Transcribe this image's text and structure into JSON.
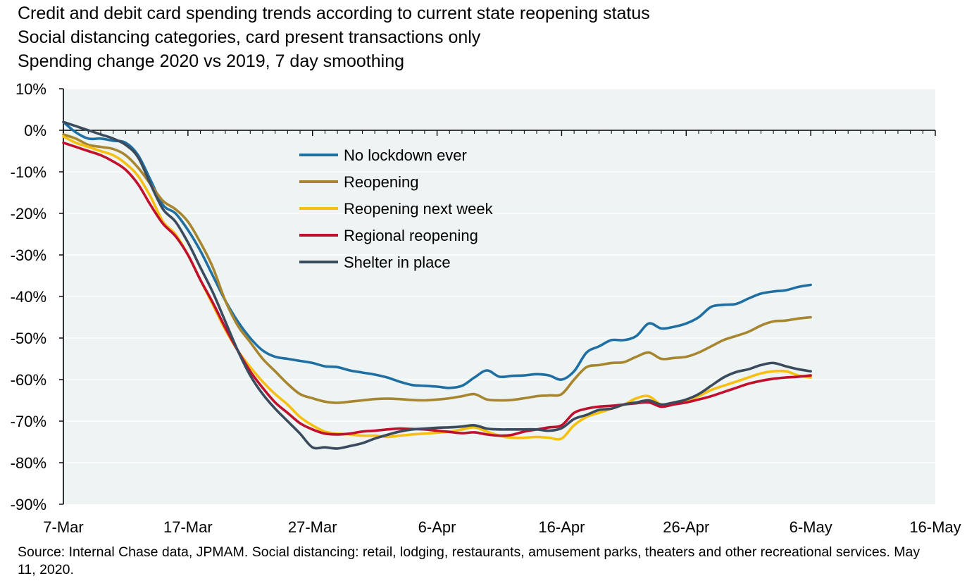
{
  "chart_data": {
    "type": "line",
    "title": "Credit and debit card spending trends according to current state reopening status",
    "subtitle": "Social distancing categories, card present transactions only",
    "subtitle2": "Spending change 2020 vs 2019, 7 day smoothing",
    "xlabel": "",
    "ylabel": "",
    "x_unit": "days since 7-Mar-2020",
    "xlim": [
      0,
      70
    ],
    "ylim": [
      -90,
      10
    ],
    "y_ticks": [
      10,
      0,
      -10,
      -20,
      -30,
      -40,
      -50,
      -60,
      -70,
      -80,
      -90
    ],
    "y_tick_labels": [
      "10%",
      "0%",
      "-10%",
      "-20%",
      "-30%",
      "-40%",
      "-50%",
      "-60%",
      "-70%",
      "-80%",
      "-90%"
    ],
    "x_ticks": [
      0,
      10,
      20,
      30,
      40,
      50,
      60,
      70
    ],
    "x_tick_labels": [
      "7-Mar",
      "17-Mar",
      "27-Mar",
      "6-Apr",
      "16-Apr",
      "26-Apr",
      "6-May",
      "16-May"
    ],
    "grid": "horizontal",
    "background": "#EDF4F3",
    "legend_position": "upper-center",
    "series": [
      {
        "name": "No lockdown ever",
        "color": "#1F6FA3",
        "points": [
          [
            0,
            2
          ],
          [
            1,
            -0.5
          ],
          [
            2,
            -2
          ],
          [
            3,
            -2
          ],
          [
            4,
            -2.5
          ],
          [
            5,
            -3
          ],
          [
            6,
            -6
          ],
          [
            7,
            -12
          ],
          [
            8,
            -18
          ],
          [
            9,
            -20
          ],
          [
            10,
            -24
          ],
          [
            11,
            -29
          ],
          [
            12,
            -35
          ],
          [
            13,
            -41
          ],
          [
            14,
            -46
          ],
          [
            15,
            -50
          ],
          [
            16,
            -53
          ],
          [
            17,
            -54.5
          ],
          [
            18,
            -55
          ],
          [
            19,
            -55.5
          ],
          [
            20,
            -56
          ],
          [
            21,
            -56.8
          ],
          [
            22,
            -57
          ],
          [
            23,
            -57.8
          ],
          [
            24,
            -58.3
          ],
          [
            25,
            -58.8
          ],
          [
            26,
            -59.5
          ],
          [
            27,
            -60.5
          ],
          [
            28,
            -61.3
          ],
          [
            29,
            -61.5
          ],
          [
            30,
            -61.7
          ],
          [
            31,
            -62
          ],
          [
            32,
            -61.5
          ],
          [
            33,
            -59.5
          ],
          [
            34,
            -57.8
          ],
          [
            35,
            -59.3
          ],
          [
            36,
            -59.1
          ],
          [
            37,
            -59
          ],
          [
            38,
            -58.7
          ],
          [
            39,
            -59
          ],
          [
            40,
            -60
          ],
          [
            41,
            -58
          ],
          [
            42,
            -53.5
          ],
          [
            43,
            -52
          ],
          [
            44,
            -50.5
          ],
          [
            45,
            -50.5
          ],
          [
            46,
            -49.5
          ],
          [
            47,
            -46.5
          ],
          [
            48,
            -47.7
          ],
          [
            49,
            -47.3
          ],
          [
            50,
            -46.5
          ],
          [
            51,
            -45
          ],
          [
            52,
            -42.5
          ],
          [
            53,
            -42
          ],
          [
            54,
            -41.8
          ],
          [
            55,
            -40.5
          ],
          [
            56,
            -39.3
          ],
          [
            57,
            -38.8
          ],
          [
            58,
            -38.5
          ],
          [
            59,
            -37.7
          ],
          [
            60,
            -37.2
          ]
        ]
      },
      {
        "name": "Reopening",
        "color": "#A8862F",
        "points": [
          [
            0,
            -1
          ],
          [
            1,
            -2
          ],
          [
            2,
            -3.5
          ],
          [
            3,
            -4
          ],
          [
            4,
            -4.5
          ],
          [
            5,
            -6
          ],
          [
            6,
            -9
          ],
          [
            7,
            -13
          ],
          [
            8,
            -17
          ],
          [
            9,
            -19
          ],
          [
            10,
            -22
          ],
          [
            11,
            -27
          ],
          [
            12,
            -33
          ],
          [
            13,
            -41
          ],
          [
            14,
            -47
          ],
          [
            15,
            -51
          ],
          [
            16,
            -55
          ],
          [
            17,
            -58
          ],
          [
            18,
            -61
          ],
          [
            19,
            -63.5
          ],
          [
            20,
            -64.5
          ],
          [
            21,
            -65.3
          ],
          [
            22,
            -65.6
          ],
          [
            23,
            -65.3
          ],
          [
            24,
            -65
          ],
          [
            25,
            -64.7
          ],
          [
            26,
            -64.6
          ],
          [
            27,
            -64.7
          ],
          [
            28,
            -64.9
          ],
          [
            29,
            -65
          ],
          [
            30,
            -64.8
          ],
          [
            31,
            -64.5
          ],
          [
            32,
            -64
          ],
          [
            33,
            -63.5
          ],
          [
            34,
            -64.8
          ],
          [
            35,
            -65
          ],
          [
            36,
            -64.9
          ],
          [
            37,
            -64.5
          ],
          [
            38,
            -64
          ],
          [
            39,
            -63.8
          ],
          [
            40,
            -63.5
          ],
          [
            41,
            -60
          ],
          [
            42,
            -57
          ],
          [
            43,
            -56.5
          ],
          [
            44,
            -56
          ],
          [
            45,
            -55.8
          ],
          [
            46,
            -54.5
          ],
          [
            47,
            -53.5
          ],
          [
            48,
            -55
          ],
          [
            49,
            -54.8
          ],
          [
            50,
            -54.5
          ],
          [
            51,
            -53.5
          ],
          [
            52,
            -52
          ],
          [
            53,
            -50.5
          ],
          [
            54,
            -49.5
          ],
          [
            55,
            -48.5
          ],
          [
            56,
            -47
          ],
          [
            57,
            -46
          ],
          [
            58,
            -45.8
          ],
          [
            59,
            -45.3
          ],
          [
            60,
            -45
          ]
        ]
      },
      {
        "name": "Reopening next week",
        "color": "#F6C010",
        "points": [
          [
            0,
            -1.5
          ],
          [
            1,
            -3
          ],
          [
            2,
            -4
          ],
          [
            3,
            -5
          ],
          [
            4,
            -6
          ],
          [
            5,
            -8
          ],
          [
            6,
            -11
          ],
          [
            7,
            -16
          ],
          [
            8,
            -22
          ],
          [
            9,
            -25
          ],
          [
            10,
            -30
          ],
          [
            11,
            -36
          ],
          [
            12,
            -42
          ],
          [
            13,
            -48
          ],
          [
            14,
            -53
          ],
          [
            15,
            -57
          ],
          [
            16,
            -60.5
          ],
          [
            17,
            -63.5
          ],
          [
            18,
            -66
          ],
          [
            19,
            -69
          ],
          [
            20,
            -71
          ],
          [
            21,
            -72.5
          ],
          [
            22,
            -73
          ],
          [
            23,
            -73.2
          ],
          [
            24,
            -73.5
          ],
          [
            25,
            -73.5
          ],
          [
            26,
            -73.8
          ],
          [
            27,
            -73.5
          ],
          [
            28,
            -73.2
          ],
          [
            29,
            -73
          ],
          [
            30,
            -72.8
          ],
          [
            31,
            -72.5
          ],
          [
            32,
            -72
          ],
          [
            33,
            -71.5
          ],
          [
            34,
            -72.5
          ],
          [
            35,
            -73.5
          ],
          [
            36,
            -74
          ],
          [
            37,
            -74
          ],
          [
            38,
            -73.8
          ],
          [
            39,
            -74
          ],
          [
            40,
            -74.2
          ],
          [
            41,
            -71
          ],
          [
            42,
            -69
          ],
          [
            43,
            -68
          ],
          [
            44,
            -67
          ],
          [
            45,
            -66
          ],
          [
            46,
            -64.5
          ],
          [
            47,
            -64
          ],
          [
            48,
            -66
          ],
          [
            49,
            -65.5
          ],
          [
            50,
            -65
          ],
          [
            51,
            -64
          ],
          [
            52,
            -62.5
          ],
          [
            53,
            -61.5
          ],
          [
            54,
            -60.5
          ],
          [
            55,
            -59.5
          ],
          [
            56,
            -58.5
          ],
          [
            57,
            -58
          ],
          [
            58,
            -58
          ],
          [
            59,
            -59
          ],
          [
            60,
            -59.5
          ]
        ]
      },
      {
        "name": "Regional reopening",
        "color": "#C0102E",
        "points": [
          [
            0,
            -3
          ],
          [
            1,
            -4
          ],
          [
            2,
            -5
          ],
          [
            3,
            -6
          ],
          [
            4,
            -7.5
          ],
          [
            5,
            -9.5
          ],
          [
            6,
            -13
          ],
          [
            7,
            -18
          ],
          [
            8,
            -22.5
          ],
          [
            9,
            -25.5
          ],
          [
            10,
            -30
          ],
          [
            11,
            -36
          ],
          [
            12,
            -41.5
          ],
          [
            13,
            -47.5
          ],
          [
            14,
            -53
          ],
          [
            15,
            -58
          ],
          [
            16,
            -62
          ],
          [
            17,
            -65.5
          ],
          [
            18,
            -68
          ],
          [
            19,
            -70.5
          ],
          [
            20,
            -72
          ],
          [
            21,
            -73
          ],
          [
            22,
            -73.2
          ],
          [
            23,
            -73
          ],
          [
            24,
            -72.5
          ],
          [
            25,
            -72.3
          ],
          [
            26,
            -72
          ],
          [
            27,
            -71.8
          ],
          [
            28,
            -71.9
          ],
          [
            29,
            -72
          ],
          [
            30,
            -72.3
          ],
          [
            31,
            -72.6
          ],
          [
            32,
            -72.9
          ],
          [
            33,
            -72.7
          ],
          [
            34,
            -73.2
          ],
          [
            35,
            -73.5
          ],
          [
            36,
            -73.3
          ],
          [
            37,
            -72.5
          ],
          [
            38,
            -72
          ],
          [
            39,
            -71.5
          ],
          [
            40,
            -71
          ],
          [
            41,
            -68
          ],
          [
            42,
            -67
          ],
          [
            43,
            -66.5
          ],
          [
            44,
            -66.3
          ],
          [
            45,
            -66
          ],
          [
            46,
            -65.7
          ],
          [
            47,
            -65.5
          ],
          [
            48,
            -66.5
          ],
          [
            49,
            -66
          ],
          [
            50,
            -65.5
          ],
          [
            51,
            -64.8
          ],
          [
            52,
            -64
          ],
          [
            53,
            -63
          ],
          [
            54,
            -62
          ],
          [
            55,
            -61
          ],
          [
            56,
            -60.3
          ],
          [
            57,
            -59.8
          ],
          [
            58,
            -59.5
          ],
          [
            59,
            -59.3
          ],
          [
            60,
            -59
          ]
        ]
      },
      {
        "name": "Shelter in place",
        "color": "#3C4A5E",
        "points": [
          [
            0,
            2
          ],
          [
            1,
            1
          ],
          [
            2,
            0
          ],
          [
            3,
            -1
          ],
          [
            4,
            -2
          ],
          [
            5,
            -3.5
          ],
          [
            6,
            -6.5
          ],
          [
            7,
            -13
          ],
          [
            8,
            -19
          ],
          [
            9,
            -22
          ],
          [
            10,
            -27
          ],
          [
            11,
            -33
          ],
          [
            12,
            -39
          ],
          [
            13,
            -46
          ],
          [
            14,
            -53
          ],
          [
            15,
            -59
          ],
          [
            16,
            -63.5
          ],
          [
            17,
            -67
          ],
          [
            18,
            -70
          ],
          [
            19,
            -73
          ],
          [
            20,
            -76.3
          ],
          [
            21,
            -76.3
          ],
          [
            22,
            -76.6
          ],
          [
            23,
            -76
          ],
          [
            24,
            -75.3
          ],
          [
            25,
            -74.2
          ],
          [
            26,
            -73.3
          ],
          [
            27,
            -72.5
          ],
          [
            28,
            -72
          ],
          [
            29,
            -71.8
          ],
          [
            30,
            -71.6
          ],
          [
            31,
            -71.5
          ],
          [
            32,
            -71.3
          ],
          [
            33,
            -71
          ],
          [
            34,
            -71.8
          ],
          [
            35,
            -72
          ],
          [
            36,
            -72
          ],
          [
            37,
            -72
          ],
          [
            38,
            -72
          ],
          [
            39,
            -72.3
          ],
          [
            40,
            -71.7
          ],
          [
            41,
            -69.5
          ],
          [
            42,
            -68.5
          ],
          [
            43,
            -67.3
          ],
          [
            44,
            -67
          ],
          [
            45,
            -66
          ],
          [
            46,
            -65.5
          ],
          [
            47,
            -65
          ],
          [
            48,
            -66
          ],
          [
            49,
            -65.5
          ],
          [
            50,
            -64.8
          ],
          [
            51,
            -63.5
          ],
          [
            52,
            -61.5
          ],
          [
            53,
            -59.5
          ],
          [
            54,
            -58.2
          ],
          [
            55,
            -57.5
          ],
          [
            56,
            -56.5
          ],
          [
            57,
            -56
          ],
          [
            58,
            -56.8
          ],
          [
            59,
            -57.5
          ],
          [
            60,
            -58
          ]
        ]
      }
    ],
    "source_note": "Source:  Internal Chase data, JPMAM. Social distancing: retail, lodging, restaurants, amusement parks, theaters and other recreational services. May 11, 2020."
  }
}
